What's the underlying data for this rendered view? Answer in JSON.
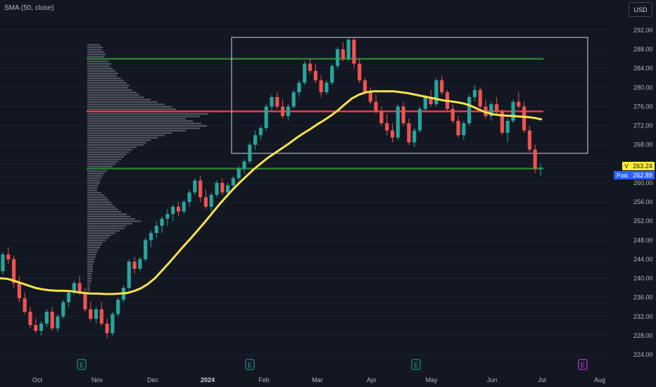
{
  "header": {
    "indicator": "SMA (50, close)",
    "currency": "USD"
  },
  "chart_data": {
    "type": "candlestick",
    "ylim": [
      222,
      294
    ],
    "y_ticks": [
      "292.00",
      "288.00",
      "284.00",
      "280.00",
      "276.00",
      "272.00",
      "268.00",
      "264.00",
      "260.00",
      "256.00",
      "252.00",
      "248.00",
      "244.00",
      "240.00",
      "236.00",
      "232.00",
      "228.00",
      "224.00"
    ],
    "x_ticks": [
      "Oct",
      "Nov",
      "Dec",
      "2024",
      "Feb",
      "Mar",
      "Apr",
      "May",
      "Jun",
      "Jul",
      "Aug"
    ],
    "bold_x_tick": "2024",
    "earnings_markers": [
      "E",
      "E",
      "E",
      "E"
    ],
    "price_labels": [
      {
        "tag": "V",
        "value": "263.24",
        "price": 263.24,
        "color": "#ffeb3b",
        "text_color": "#131722"
      },
      {
        "tag": "Post",
        "value": "262.89",
        "price": 262.89,
        "color": "#2962ff",
        "text_color": "#ffffff"
      }
    ],
    "horizontal_levels": [
      {
        "price": 286.0,
        "color": "#2e7d32"
      },
      {
        "price": 275.0,
        "color": "#f23645"
      },
      {
        "price": 263.0,
        "color": "#2e7d32"
      }
    ],
    "range_box": {
      "price_top": 290.5,
      "price_bottom": 266.2,
      "color": "#d1d4dc"
    },
    "sma_color": "#f7e24a",
    "up_color": "#26a69a",
    "down_color": "#ef5350",
    "sma_points": [
      [
        0,
        240.0
      ],
      [
        10,
        239.9
      ],
      [
        20,
        239.5
      ],
      [
        30,
        239.0
      ],
      [
        40,
        238.5
      ],
      [
        50,
        238.0
      ],
      [
        60,
        237.7
      ],
      [
        70,
        237.5
      ],
      [
        80,
        237.4
      ],
      [
        90,
        237.4
      ],
      [
        100,
        237.3
      ],
      [
        110,
        237.1
      ],
      [
        120,
        236.9
      ],
      [
        130,
        236.8
      ],
      [
        140,
        236.8
      ],
      [
        150,
        236.7
      ],
      [
        160,
        236.7
      ],
      [
        170,
        236.8
      ],
      [
        180,
        236.9
      ],
      [
        190,
        237.3
      ],
      [
        200,
        237.9
      ],
      [
        210,
        238.8
      ],
      [
        220,
        240.0
      ],
      [
        230,
        241.6
      ],
      [
        240,
        243.2
      ],
      [
        250,
        244.9
      ],
      [
        260,
        246.6
      ],
      [
        270,
        248.2
      ],
      [
        280,
        249.9
      ],
      [
        290,
        251.6
      ],
      [
        300,
        253.4
      ],
      [
        310,
        255.2
      ],
      [
        320,
        256.9
      ],
      [
        330,
        258.5
      ],
      [
        340,
        260.0
      ],
      [
        350,
        261.4
      ],
      [
        360,
        262.8
      ],
      [
        370,
        264.0
      ],
      [
        380,
        265.2
      ],
      [
        390,
        266.2
      ],
      [
        400,
        267.2
      ],
      [
        410,
        268.2
      ],
      [
        420,
        269.3
      ],
      [
        430,
        270.3
      ],
      [
        440,
        271.2
      ],
      [
        450,
        272.2
      ],
      [
        460,
        273.1
      ],
      [
        470,
        274.1
      ],
      [
        480,
        275.2
      ],
      [
        490,
        276.5
      ],
      [
        500,
        277.7
      ],
      [
        510,
        278.5
      ],
      [
        520,
        279.0
      ],
      [
        530,
        279.2
      ],
      [
        540,
        279.2
      ],
      [
        550,
        279.2
      ],
      [
        560,
        279.2
      ],
      [
        570,
        279.0
      ],
      [
        580,
        278.8
      ],
      [
        590,
        278.5
      ],
      [
        600,
        278.2
      ],
      [
        610,
        277.9
      ],
      [
        620,
        277.6
      ],
      [
        630,
        277.3
      ],
      [
        640,
        277.1
      ],
      [
        650,
        276.9
      ],
      [
        660,
        276.6
      ],
      [
        670,
        276.1
      ],
      [
        680,
        275.4
      ],
      [
        690,
        274.8
      ],
      [
        700,
        274.4
      ],
      [
        710,
        274.2
      ],
      [
        720,
        274.1
      ],
      [
        730,
        274.0
      ],
      [
        740,
        273.9
      ],
      [
        750,
        273.8
      ],
      [
        760,
        273.6
      ],
      [
        770,
        273.3
      ]
    ],
    "volume_profile": {
      "price_step": 0.5,
      "widths": [
        18,
        22,
        20,
        24,
        26,
        24,
        28,
        30,
        34,
        32,
        36,
        40,
        44,
        42,
        48,
        52,
        56,
        60,
        58,
        64,
        70,
        74,
        80,
        90,
        100,
        110,
        120,
        126,
        150,
        172,
        160,
        140,
        150,
        162,
        170,
        160,
        140,
        120,
        110,
        100,
        90,
        84,
        80,
        70,
        64,
        60,
        56,
        52,
        48,
        44,
        40,
        36,
        32,
        28,
        24,
        22,
        20,
        18,
        18,
        16,
        14,
        14,
        20,
        24,
        28,
        30,
        34,
        36,
        40,
        44,
        48,
        56,
        62,
        68,
        76,
        64,
        56,
        52,
        46,
        40,
        34,
        30,
        26,
        22,
        20,
        18,
        16,
        14,
        12,
        12,
        10,
        10,
        8,
        8,
        8,
        8,
        6,
        6,
        6,
        6,
        4,
        4,
        4,
        4
      ],
      "start_price": 289.0
    },
    "candles": [
      [
        241.5,
        245.5,
        240.8,
        245.0
      ],
      [
        245.0,
        246.5,
        243.0,
        244.0
      ],
      [
        244.0,
        244.8,
        238.0,
        239.0
      ],
      [
        239.0,
        240.5,
        235.0,
        235.8
      ],
      [
        235.8,
        237.0,
        232.5,
        233.0
      ],
      [
        233.0,
        234.0,
        229.5,
        230.2
      ],
      [
        230.2,
        231.5,
        228.5,
        229.0
      ],
      [
        229.0,
        231.0,
        228.0,
        230.5
      ],
      [
        230.5,
        233.5,
        229.8,
        233.0
      ],
      [
        233.0,
        234.0,
        229.0,
        229.5
      ],
      [
        229.5,
        232.5,
        228.8,
        232.0
      ],
      [
        232.0,
        235.5,
        231.5,
        235.0
      ],
      [
        235.0,
        237.5,
        234.0,
        237.0
      ],
      [
        237.0,
        239.5,
        236.5,
        239.0
      ],
      [
        239.0,
        240.5,
        236.5,
        237.0
      ],
      [
        237.0,
        238.0,
        233.0,
        233.5
      ],
      [
        233.5,
        235.0,
        231.0,
        231.5
      ],
      [
        231.5,
        234.0,
        230.5,
        233.5
      ],
      [
        233.5,
        235.0,
        230.0,
        230.5
      ],
      [
        230.5,
        231.5,
        227.5,
        228.5
      ],
      [
        228.5,
        233.0,
        228.0,
        232.5
      ],
      [
        232.5,
        236.0,
        232.0,
        235.5
      ],
      [
        235.5,
        238.5,
        235.0,
        238.0
      ],
      [
        238.0,
        244.0,
        237.5,
        243.5
      ],
      [
        243.5,
        244.5,
        241.0,
        242.0
      ],
      [
        242.0,
        244.5,
        241.5,
        244.0
      ],
      [
        244.0,
        248.5,
        243.5,
        248.0
      ],
      [
        248.0,
        250.0,
        246.5,
        249.5
      ],
      [
        249.5,
        252.0,
        248.5,
        251.0
      ],
      [
        251.0,
        253.0,
        249.5,
        252.5
      ],
      [
        252.5,
        254.5,
        251.0,
        253.5
      ],
      [
        253.5,
        255.5,
        252.0,
        255.0
      ],
      [
        255.0,
        256.0,
        253.0,
        254.0
      ],
      [
        254.0,
        256.5,
        253.5,
        256.0
      ],
      [
        256.0,
        258.5,
        255.0,
        258.0
      ],
      [
        258.0,
        261.0,
        257.5,
        260.5
      ],
      [
        260.5,
        261.5,
        256.0,
        257.0
      ],
      [
        257.0,
        258.5,
        254.5,
        255.0
      ],
      [
        255.0,
        258.0,
        254.0,
        257.5
      ],
      [
        257.5,
        260.5,
        257.0,
        260.0
      ],
      [
        260.0,
        261.0,
        257.5,
        258.0
      ],
      [
        258.0,
        260.0,
        257.0,
        259.5
      ],
      [
        259.5,
        261.5,
        259.0,
        261.0
      ],
      [
        261.0,
        263.5,
        260.5,
        263.0
      ],
      [
        263.0,
        265.0,
        262.0,
        264.5
      ],
      [
        264.5,
        268.5,
        264.0,
        268.0
      ],
      [
        268.0,
        271.0,
        267.0,
        270.0
      ],
      [
        270.0,
        272.0,
        269.0,
        271.5
      ],
      [
        271.5,
        276.5,
        271.0,
        276.0
      ],
      [
        276.0,
        278.5,
        275.0,
        278.0
      ],
      [
        278.0,
        279.0,
        275.5,
        276.0
      ],
      [
        276.0,
        277.5,
        273.5,
        274.0
      ],
      [
        274.0,
        276.5,
        273.0,
        276.0
      ],
      [
        276.0,
        279.5,
        275.5,
        279.0
      ],
      [
        279.0,
        281.5,
        278.0,
        281.0
      ],
      [
        281.0,
        285.5,
        280.5,
        285.0
      ],
      [
        285.0,
        286.0,
        283.0,
        283.5
      ],
      [
        283.5,
        285.0,
        281.0,
        281.5
      ],
      [
        281.5,
        282.5,
        278.0,
        279.0
      ],
      [
        279.0,
        281.5,
        278.5,
        281.0
      ],
      [
        281.0,
        285.0,
        280.5,
        284.5
      ],
      [
        284.5,
        288.5,
        284.0,
        288.0
      ],
      [
        288.0,
        289.5,
        285.5,
        286.0
      ],
      [
        286.0,
        290.5,
        285.5,
        290.0
      ],
      [
        290.0,
        290.5,
        284.0,
        285.0
      ],
      [
        285.0,
        286.0,
        281.0,
        281.5
      ],
      [
        281.5,
        282.0,
        278.5,
        279.0
      ],
      [
        279.0,
        280.0,
        276.5,
        277.0
      ],
      [
        277.0,
        278.5,
        274.5,
        275.0
      ],
      [
        275.0,
        276.0,
        272.0,
        272.5
      ],
      [
        272.5,
        274.5,
        270.0,
        271.0
      ],
      [
        271.0,
        272.5,
        268.5,
        269.5
      ],
      [
        269.5,
        276.5,
        269.0,
        276.0
      ],
      [
        276.0,
        277.0,
        272.0,
        272.5
      ],
      [
        272.5,
        273.5,
        268.0,
        268.5
      ],
      [
        268.5,
        271.5,
        267.5,
        271.0
      ],
      [
        271.0,
        276.0,
        270.5,
        275.5
      ],
      [
        275.5,
        278.5,
        275.0,
        278.0
      ],
      [
        278.0,
        279.5,
        276.0,
        276.5
      ],
      [
        276.5,
        282.0,
        276.0,
        281.5
      ],
      [
        281.5,
        282.5,
        278.5,
        279.0
      ],
      [
        279.0,
        279.5,
        275.0,
        275.5
      ],
      [
        275.5,
        276.5,
        272.5,
        273.0
      ],
      [
        273.0,
        274.0,
        269.5,
        270.0
      ],
      [
        270.0,
        273.0,
        269.0,
        272.5
      ],
      [
        272.5,
        278.5,
        272.0,
        278.0
      ],
      [
        278.0,
        280.5,
        277.0,
        279.5
      ],
      [
        279.5,
        280.0,
        275.5,
        276.0
      ],
      [
        276.0,
        277.5,
        273.5,
        274.0
      ],
      [
        274.0,
        277.0,
        273.0,
        276.5
      ],
      [
        276.5,
        278.0,
        274.5,
        275.0
      ],
      [
        275.0,
        275.5,
        270.0,
        270.5
      ],
      [
        270.5,
        273.5,
        268.5,
        273.0
      ],
      [
        273.0,
        277.5,
        272.5,
        277.0
      ],
      [
        277.0,
        279.0,
        275.5,
        276.0
      ],
      [
        276.0,
        277.0,
        270.5,
        271.0
      ],
      [
        271.0,
        272.0,
        266.5,
        267.0
      ],
      [
        267.0,
        268.0,
        262.0,
        263.0
      ],
      [
        263.0,
        264.0,
        261.5,
        263.2
      ]
    ]
  }
}
